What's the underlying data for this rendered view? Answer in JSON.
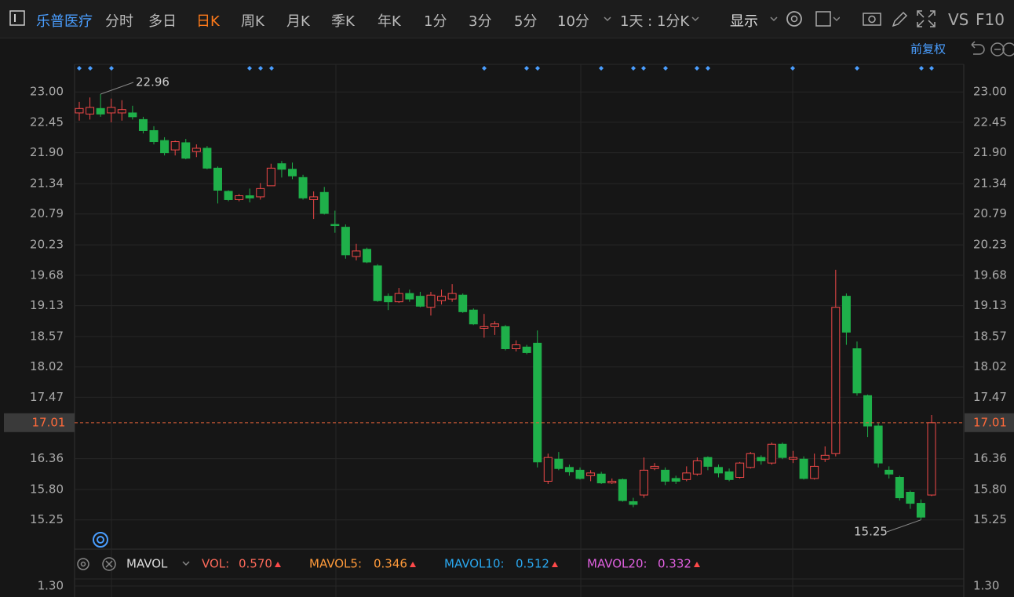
{
  "toolbar": {
    "stock": "乐普医疗",
    "tabs": [
      "分时",
      "多日",
      "日K",
      "周K",
      "月K",
      "季K",
      "年K",
      "1分",
      "3分",
      "5分",
      "10分"
    ],
    "period": "1天 : 1分K",
    "display": "显示",
    "vs": "VS",
    "f10": "F10",
    "adjust": "前复权"
  },
  "chart_data": {
    "type": "candlestick",
    "open": [
      22.62,
      22.6,
      22.7,
      22.62,
      22.62,
      22.62,
      22.5,
      22.3,
      22.12,
      21.95,
      22.08,
      21.92,
      21.98,
      21.62,
      21.2,
      21.05,
      21.12,
      21.1,
      21.3,
      21.7,
      21.6,
      21.45,
      21.05,
      21.18,
      20.6,
      20.55,
      20.02,
      20.15,
      19.85,
      19.3,
      19.2,
      19.35,
      19.3,
      19.1,
      19.22,
      19.25,
      19.32,
      19.05,
      18.72,
      18.75,
      18.75,
      18.35,
      18.38,
      18.45,
      15.95,
      16.35,
      16.2,
      16.15,
      16.05,
      16.08,
      15.92,
      15.98,
      15.58,
      15.7,
      16.18,
      16.15,
      16.0,
      15.98,
      16.08,
      16.38,
      16.2,
      16.12,
      16.02,
      16.2,
      16.38,
      16.28,
      16.62,
      16.35,
      16.35,
      16.0,
      16.35,
      16.45,
      19.3,
      18.35,
      17.5,
      16.95,
      16.15,
      16.02,
      15.75,
      15.55,
      15.7
    ],
    "high": [
      22.82,
      22.9,
      22.96,
      22.88,
      22.85,
      22.75,
      22.55,
      22.38,
      22.18,
      22.12,
      22.15,
      22.05,
      22.02,
      21.65,
      21.22,
      21.15,
      21.25,
      21.35,
      21.7,
      21.75,
      21.72,
      21.5,
      21.2,
      21.28,
      20.85,
      20.6,
      20.25,
      20.18,
      19.88,
      19.35,
      19.45,
      19.42,
      19.38,
      19.38,
      19.42,
      19.52,
      19.35,
      19.08,
      18.98,
      18.85,
      18.78,
      18.5,
      18.42,
      18.68,
      16.45,
      16.48,
      16.25,
      16.2,
      16.15,
      16.12,
      16.0,
      16.0,
      15.65,
      16.38,
      16.28,
      16.2,
      16.05,
      16.22,
      16.38,
      16.4,
      16.25,
      16.18,
      16.3,
      16.48,
      16.42,
      16.65,
      16.65,
      16.5,
      16.4,
      16.45,
      16.58,
      19.78,
      19.35,
      18.48,
      17.52,
      17.0,
      16.22,
      16.05,
      15.78,
      15.62,
      17.15
    ],
    "low": [
      22.48,
      22.5,
      22.55,
      22.45,
      22.48,
      22.5,
      22.25,
      22.05,
      21.85,
      21.85,
      21.78,
      21.82,
      21.6,
      20.98,
      21.02,
      21.02,
      21.0,
      21.05,
      21.3,
      21.45,
      21.42,
      21.05,
      20.7,
      20.78,
      20.45,
      19.98,
      19.95,
      19.9,
      19.2,
      19.05,
      19.18,
      19.2,
      19.1,
      18.95,
      19.15,
      19.2,
      19.0,
      18.78,
      18.55,
      18.6,
      18.32,
      18.3,
      18.25,
      16.2,
      15.9,
      16.15,
      16.05,
      15.98,
      15.95,
      15.9,
      15.9,
      15.58,
      15.48,
      15.65,
      16.15,
      15.88,
      15.9,
      15.95,
      16.05,
      16.15,
      16.02,
      15.95,
      16.0,
      16.18,
      16.25,
      16.25,
      16.35,
      16.28,
      15.98,
      15.98,
      16.3,
      16.4,
      18.42,
      17.5,
      16.75,
      16.2,
      16.0,
      15.6,
      15.45,
      15.25,
      15.68
    ],
    "close": [
      22.7,
      22.72,
      22.6,
      22.72,
      22.68,
      22.55,
      22.3,
      22.1,
      21.9,
      22.1,
      21.8,
      21.98,
      21.62,
      21.22,
      21.05,
      21.12,
      21.08,
      21.25,
      21.62,
      21.6,
      21.48,
      21.08,
      21.1,
      20.8,
      20.58,
      20.05,
      20.12,
      19.92,
      19.22,
      19.2,
      19.35,
      19.25,
      19.12,
      19.32,
      19.3,
      19.35,
      19.02,
      18.8,
      18.75,
      18.8,
      18.35,
      18.42,
      18.28,
      16.3,
      16.38,
      16.18,
      16.12,
      16.0,
      16.1,
      15.92,
      15.95,
      15.6,
      15.53,
      16.15,
      16.22,
      15.95,
      15.95,
      16.1,
      16.32,
      16.22,
      16.1,
      15.98,
      16.28,
      16.45,
      16.32,
      16.62,
      16.38,
      16.38,
      16.0,
      16.22,
      16.42,
      19.1,
      18.65,
      17.55,
      16.95,
      16.28,
      16.08,
      15.65,
      15.55,
      15.3,
      17.01
    ],
    "up_color": "#f04848",
    "down_color": "#1fb04a",
    "ylim": [
      14.72,
      23.5
    ],
    "yticks": [
      {
        "value": 23,
        "label": "23.00"
      },
      22.45,
      {
        "value": 21.9,
        "label": "21.90"
      },
      21.34,
      20.79,
      20.23,
      19.68,
      19.13,
      18.57,
      18.02,
      17.47,
      16.36,
      {
        "value": 15.8,
        "label": "15.80"
      },
      15.25
    ],
    "grid": true,
    "last_price": 17.01,
    "max_label": 22.96,
    "min_label": 15.25
  },
  "volume_panel": {
    "indicator": "MAVOL",
    "items": [
      [
        "VOL:",
        "0.570"
      ],
      [
        "MAVOL5:",
        "0.346"
      ],
      [
        "MAVOL10:",
        "0.512"
      ],
      [
        "MAVOL20:",
        "0.332"
      ]
    ],
    "ytick": {
      "value": 1.3,
      "label": "1.30"
    }
  }
}
